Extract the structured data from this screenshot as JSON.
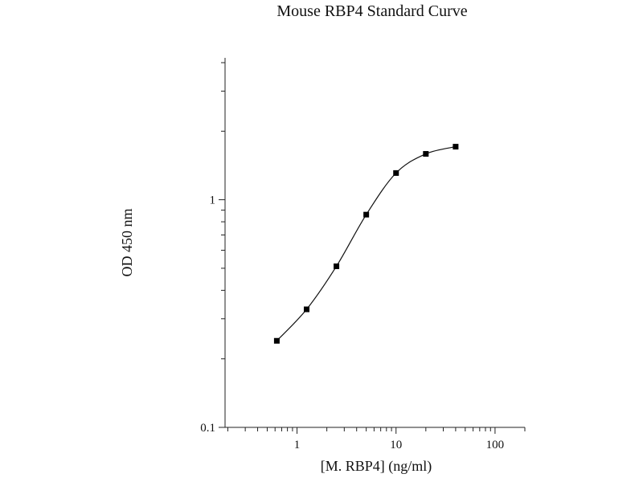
{
  "chart_data": {
    "type": "scatter",
    "title": "Mouse RBP4 Standard Curve",
    "xlabel": "[M. RBP4] (ng/ml)",
    "ylabel": "OD 450 nm",
    "xscale": "log",
    "yscale": "log",
    "xlim": [
      0.1875,
      200
    ],
    "ylim": [
      0.1,
      4.2
    ],
    "x_ticks": [
      1,
      10,
      100
    ],
    "x_tick_labels": [
      "1",
      "10",
      "100"
    ],
    "y_ticks": [
      0.1,
      1
    ],
    "y_tick_labels": [
      "0.1",
      "1"
    ],
    "grid": false,
    "legend": "none",
    "series": [
      {
        "x": [
          0.625,
          1.25,
          2.5,
          5,
          10,
          20,
          40
        ],
        "y": [
          0.24,
          0.33,
          0.51,
          0.86,
          1.31,
          1.59,
          1.71
        ]
      }
    ],
    "colors": {
      "points": "#000000",
      "curve": "#111111",
      "axes": "#222222"
    }
  }
}
